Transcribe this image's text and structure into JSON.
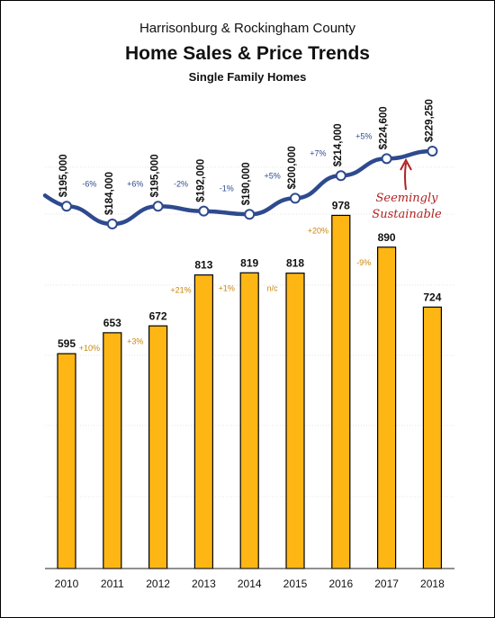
{
  "header": {
    "subtitle": "Harrisonburg & Rockingham County",
    "title": "Home Sales & Price Trends",
    "category": "Single Family Homes"
  },
  "chart_data": {
    "type": "bar",
    "categories": [
      "2010",
      "2011",
      "2012",
      "2013",
      "2014",
      "2015",
      "2016",
      "2017",
      "2018"
    ],
    "sales": {
      "values": [
        595,
        653,
        672,
        813,
        819,
        818,
        978,
        890,
        724
      ],
      "labels": [
        "595",
        "653",
        "672",
        "813",
        "819",
        "818",
        "978",
        "890",
        "724"
      ],
      "changes": [
        "+10%",
        "+3%",
        "+21%",
        "+1%",
        "n/c",
        "+20%",
        "-9%"
      ],
      "change_between": [
        [
          0,
          1
        ],
        [
          1,
          2
        ],
        [
          2,
          3
        ],
        [
          3,
          4
        ],
        [
          4,
          5
        ],
        [
          5,
          6
        ],
        [
          6,
          7
        ]
      ],
      "color": "#FDB614"
    },
    "price": {
      "type": "line",
      "values": [
        195000,
        184000,
        195000,
        192000,
        190000,
        200000,
        214000,
        224600,
        229250
      ],
      "labels": [
        "$195,000",
        "$184,000",
        "$195,000",
        "$192,000",
        "$190,000",
        "$200,000",
        "$214,000",
        "$224,600",
        "$229,250"
      ],
      "changes": [
        "-6%",
        "+6%",
        "-2%",
        "-1%",
        "+5%",
        "+7%",
        "+5%"
      ],
      "color": "#2E4A8F"
    },
    "annotation": {
      "lines": [
        "Seemingly",
        "Sustainable"
      ],
      "color": "#B22222"
    },
    "grid": true
  }
}
